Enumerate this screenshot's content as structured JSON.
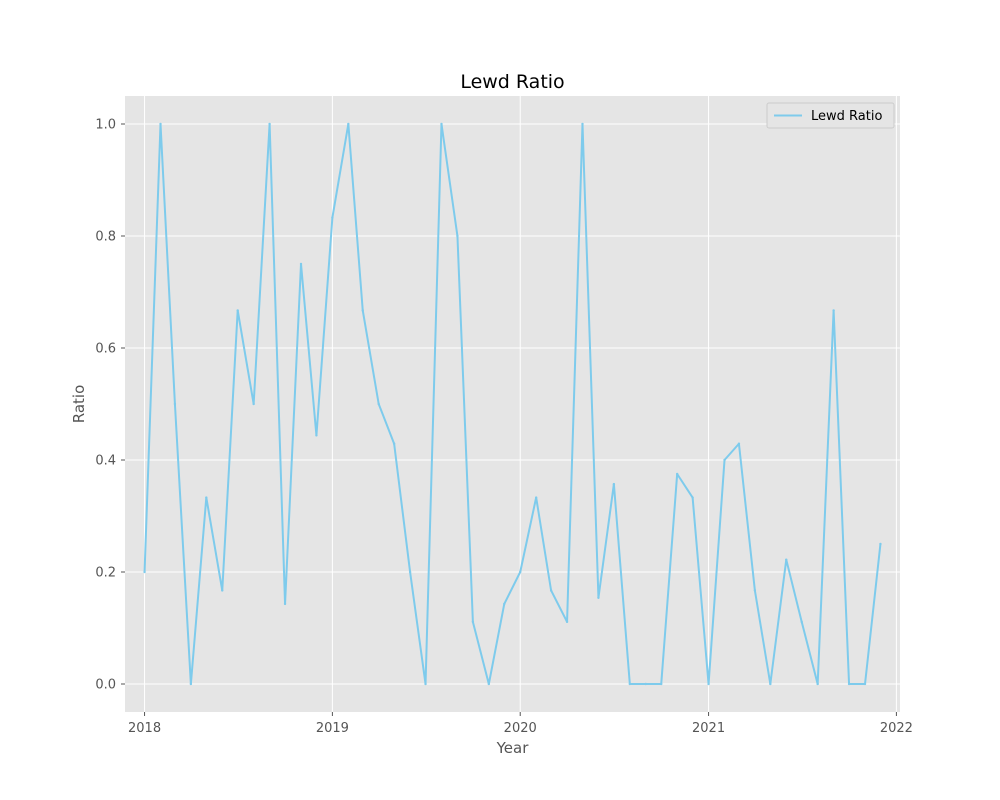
{
  "chart_data": {
    "type": "line",
    "title": "Lewd Ratio",
    "xlabel": "Year",
    "ylabel": "Ratio",
    "xlim": [
      "2017-11-24",
      "2022-01-08"
    ],
    "ylim": [
      -0.05,
      1.05
    ],
    "x_ticks": [
      "2018-01-01",
      "2019-01-01",
      "2020-01-01",
      "2021-01-01",
      "2022-01-01"
    ],
    "x_tick_labels": [
      "2018",
      "2019",
      "2020",
      "2021",
      "2022"
    ],
    "y_ticks": [
      0.0,
      0.2,
      0.4,
      0.6,
      0.8,
      1.0
    ],
    "y_tick_labels": [
      "0.0",
      "0.2",
      "0.4",
      "0.6",
      "0.8",
      "1.0"
    ],
    "grid": true,
    "legend_position": "top-right",
    "colors": {
      "line": "#7ecbec",
      "panel": "#e5e5e5",
      "grid": "#ffffff"
    },
    "series": [
      {
        "name": "Lewd Ratio",
        "x": [
          "2018-01-01",
          "2018-02-01",
          "2018-03-01",
          "2018-04-01",
          "2018-05-01",
          "2018-06-01",
          "2018-07-01",
          "2018-08-01",
          "2018-09-01",
          "2018-10-01",
          "2018-11-01",
          "2018-12-01",
          "2019-01-01",
          "2019-02-01",
          "2019-03-01",
          "2019-04-01",
          "2019-05-01",
          "2019-06-01",
          "2019-07-01",
          "2019-08-01",
          "2019-09-01",
          "2019-10-01",
          "2019-11-01",
          "2019-12-01",
          "2020-01-01",
          "2020-02-01",
          "2020-03-01",
          "2020-04-01",
          "2020-05-01",
          "2020-06-01",
          "2020-07-01",
          "2020-08-01",
          "2020-09-01",
          "2020-10-01",
          "2020-11-01",
          "2020-12-01",
          "2021-01-01",
          "2021-02-01",
          "2021-03-01",
          "2021-04-01",
          "2021-05-01",
          "2021-06-01",
          "2021-07-01",
          "2021-08-01",
          "2021-09-01",
          "2021-10-01",
          "2021-11-01",
          "2021-12-01"
        ],
        "values": [
          0.2,
          1.0,
          0.5,
          0.0,
          0.333,
          0.167,
          0.667,
          0.5,
          1.0,
          0.143,
          0.75,
          0.444,
          0.833,
          1.0,
          0.667,
          0.5,
          0.429,
          0.2,
          0.0,
          1.0,
          0.8,
          0.111,
          0.0,
          0.143,
          0.2,
          0.333,
          0.167,
          0.111,
          1.0,
          0.154,
          0.357,
          0.0,
          0.0,
          0.0,
          0.375,
          0.333,
          0.0,
          0.4,
          0.429,
          0.167,
          0.0,
          0.222,
          0.111,
          0.0,
          0.667,
          0.0,
          0.0,
          0.25
        ]
      }
    ]
  }
}
